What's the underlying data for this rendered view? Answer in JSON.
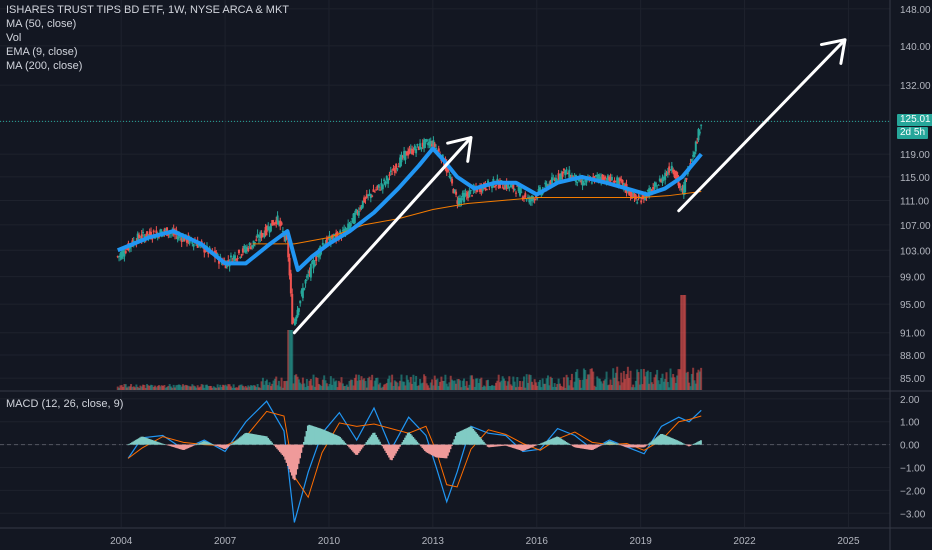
{
  "header": {
    "title": "ISHARES TRUST TIPS BD ETF, 1W, NYSE ARCA & MKT",
    "indicators": [
      "MA (50, close)",
      "Vol",
      "EMA (9, close)",
      "MA (200, close)"
    ]
  },
  "macd_label": "MACD (12, 26, close, 9)",
  "price_axis": {
    "ticks": [
      "148.00",
      "140.00",
      "132.00",
      "125.00",
      "119.00",
      "115.00",
      "111.00",
      "107.00",
      "103.00",
      "99.00",
      "95.00",
      "91.00",
      "88.00",
      "85.00"
    ],
    "last_price": "125.01",
    "countdown": "2d 5h"
  },
  "macd_axis": {
    "ticks": [
      "2.00",
      "1.00",
      "0.00",
      "−1.00",
      "−2.00",
      "−3.00"
    ]
  },
  "time_axis": {
    "ticks": [
      "2004",
      "2007",
      "2010",
      "2013",
      "2016",
      "2019",
      "2022",
      "2025"
    ]
  },
  "colors": {
    "background": "#131722",
    "grid": "#1e222d",
    "up": "#26a69a",
    "down": "#ef5350",
    "ema": "#2196f3",
    "ma200": "#f57c00",
    "arrows": "#ffffff",
    "last_line": "#26a69a"
  },
  "chart_data": {
    "type": "line",
    "series": [
      {
        "name": "ISHARES TRUST TIPS BD ETF",
        "x": [
          2003.9,
          2004.5,
          2005.3,
          2006.2,
          2007.0,
          2007.8,
          2008.5,
          2008.8,
          2008.95,
          2009.3,
          2009.8,
          2010.5,
          2011.0,
          2011.6,
          2012.2,
          2012.8,
          2013.0,
          2013.3,
          2013.7,
          2014.3,
          2014.8,
          2015.4,
          2015.8,
          2016.2,
          2016.8,
          2017.3,
          2017.8,
          2018.4,
          2018.9,
          2019.4,
          2019.9,
          2020.2,
          2020.4,
          2020.6,
          2020.75
        ],
        "values": [
          102,
          105,
          106,
          104,
          101,
          104,
          108,
          104,
          92,
          98,
          104,
          106,
          111,
          114,
          119,
          121,
          121,
          118,
          111,
          113,
          114,
          113,
          111,
          113,
          116,
          114,
          115,
          114,
          111,
          113,
          117,
          112,
          117,
          121,
          125
        ]
      },
      {
        "name": "EMA (9, close)",
        "x": [
          2003.9,
          2004.8,
          2005.5,
          2006.3,
          2007.0,
          2007.6,
          2008.3,
          2008.8,
          2009.1,
          2009.5,
          2010.0,
          2010.6,
          2011.3,
          2012.0,
          2012.6,
          2013.0,
          2013.3,
          2013.7,
          2014.2,
          2014.8,
          2015.4,
          2016.0,
          2016.6,
          2017.3,
          2018.0,
          2018.6,
          2019.2,
          2019.7,
          2020.2,
          2020.75
        ],
        "values": [
          103,
          105,
          106,
          104,
          101,
          101,
          104,
          106,
          100,
          102,
          104,
          106,
          109,
          113,
          117,
          120,
          118,
          115,
          113,
          114,
          114,
          112,
          114,
          115,
          114,
          113,
          112,
          113,
          115,
          119
        ]
      },
      {
        "name": "MA (200, close)",
        "x": [
          2007.8,
          2009.0,
          2010.0,
          2011.0,
          2012.0,
          2013.0,
          2014.0,
          2015.0,
          2016.0,
          2017.0,
          2018.0,
          2019.0,
          2019.8,
          2020.75
        ],
        "values": [
          104,
          104,
          105,
          107,
          108,
          109.5,
          110.5,
          111,
          111.5,
          111.5,
          111.5,
          111.5,
          111.8,
          112.5
        ]
      }
    ],
    "ylim": [
      83.5,
      150
    ],
    "y_scale": "log",
    "xlim": [
      2000.5,
      2026.2
    ],
    "macd": {
      "x": [
        2004.2,
        2004.6,
        2005.2,
        2005.8,
        2006.4,
        2007.0,
        2007.6,
        2008.2,
        2008.7,
        2009.0,
        2009.4,
        2009.8,
        2010.3,
        2010.8,
        2011.3,
        2011.8,
        2012.3,
        2012.8,
        2013.1,
        2013.4,
        2013.7,
        2014.1,
        2014.6,
        2015.1,
        2015.6,
        2016.1,
        2016.6,
        2017.1,
        2017.6,
        2018.1,
        2018.6,
        2019.1,
        2019.6,
        2020.1,
        2020.4,
        2020.75
      ],
      "values": [
        -0.6,
        0.3,
        0.4,
        -0.2,
        0.2,
        -0.3,
        1.0,
        1.9,
        0.6,
        -3.4,
        -1.2,
        0.5,
        1.4,
        0.2,
        1.6,
        -0.2,
        1.2,
        0.4,
        -1.0,
        -2.5,
        -1.2,
        0.8,
        0.5,
        0.4,
        -0.3,
        -0.2,
        0.7,
        0.4,
        -0.2,
        0.2,
        -0.1,
        -0.4,
        0.8,
        1.2,
        1.0,
        1.5
      ],
      "ylim": [
        -3.6,
        2.3
      ]
    },
    "arrows": [
      {
        "from": [
          2009.0,
          91
        ],
        "to": [
          2014.1,
          122
        ]
      },
      {
        "from": [
          2020.1,
          109.3
        ],
        "to": [
          2024.9,
          141.3
        ]
      }
    ],
    "last_price": 125.01
  }
}
